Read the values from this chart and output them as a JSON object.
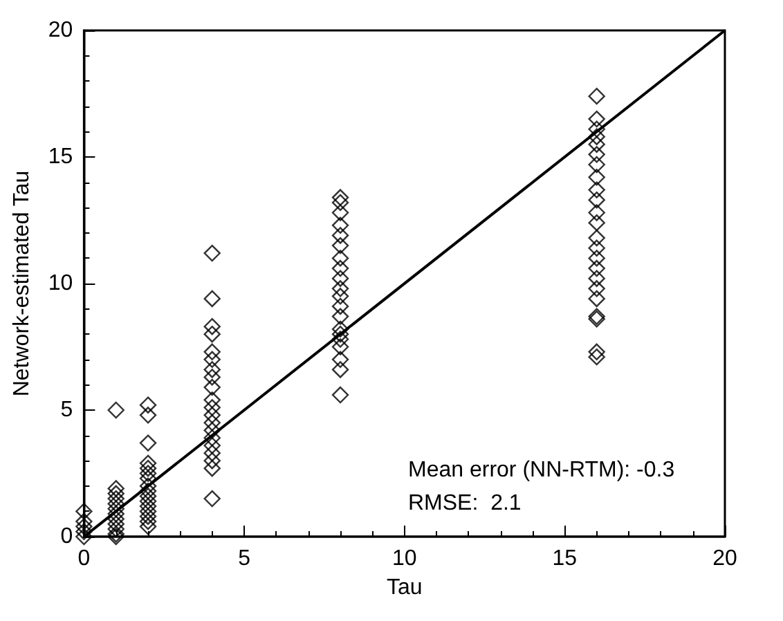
{
  "chart_data": {
    "type": "scatter",
    "xlabel": "Tau",
    "ylabel": "Network-estimated Tau",
    "xlim": [
      0,
      20
    ],
    "ylim": [
      0,
      20
    ],
    "xticks": [
      0,
      5,
      10,
      15,
      20
    ],
    "yticks": [
      0,
      5,
      10,
      15,
      20
    ],
    "grid": false,
    "marker": "diamond",
    "annotations": [
      "Mean error (NN-RTM): -0.3",
      "RMSE:  2.1"
    ],
    "series": [
      {
        "color": "#000000",
        "x": [
          0,
          0,
          0,
          0,
          0,
          1,
          1,
          1,
          1,
          1,
          1,
          1,
          1,
          1,
          1,
          1,
          1,
          2,
          2,
          2,
          2,
          2,
          2,
          2,
          2,
          2,
          2,
          2,
          2,
          2,
          2,
          2,
          2,
          4,
          4,
          4,
          4,
          4,
          4,
          4,
          4,
          4,
          4,
          4,
          4,
          4,
          4,
          4,
          4,
          4,
          4,
          4,
          4,
          8,
          8,
          8,
          8,
          8,
          8,
          8,
          8,
          8,
          8,
          8,
          8,
          8,
          8,
          8,
          8,
          8,
          8,
          8,
          8,
          16,
          16,
          16,
          16,
          16,
          16,
          16,
          16,
          16,
          16,
          16,
          16,
          16,
          16,
          16,
          16,
          16,
          16,
          16,
          16,
          16,
          16,
          16
        ],
        "values": [
          0,
          0.2,
          0.4,
          0.6,
          1.0,
          5.0,
          1.9,
          1.7,
          1.5,
          1.3,
          1.1,
          0.9,
          0.7,
          0.5,
          0.3,
          0.1,
          0,
          5.2,
          4.8,
          3.7,
          2.9,
          2.7,
          2.5,
          2.3,
          2.0,
          1.8,
          1.6,
          1.4,
          1.2,
          1.0,
          0.8,
          0.6,
          0.4,
          11.2,
          9.4,
          8.3,
          8.0,
          7.3,
          7.0,
          6.6,
          6.3,
          5.9,
          5.4,
          5.1,
          4.8,
          4.5,
          4.2,
          3.9,
          3.6,
          3.3,
          3.0,
          2.7,
          1.5,
          13.4,
          13.2,
          12.8,
          12.3,
          11.9,
          11.5,
          11.0,
          10.6,
          10.2,
          9.8,
          9.5,
          9.1,
          8.7,
          8.2,
          8.0,
          7.8,
          7.5,
          7.0,
          6.6,
          5.6,
          17.4,
          16.5,
          16.1,
          15.8,
          15.5,
          15.1,
          14.7,
          14.2,
          13.7,
          13.3,
          12.8,
          12.4,
          11.8,
          11.4,
          11.0,
          10.6,
          10.2,
          9.8,
          9.4,
          8.7,
          8.6,
          7.3,
          7.1
        ]
      },
      {
        "type": "line",
        "color": "#000000",
        "marker": "none",
        "x": [
          0,
          20
        ],
        "values": [
          0,
          20
        ]
      }
    ]
  }
}
